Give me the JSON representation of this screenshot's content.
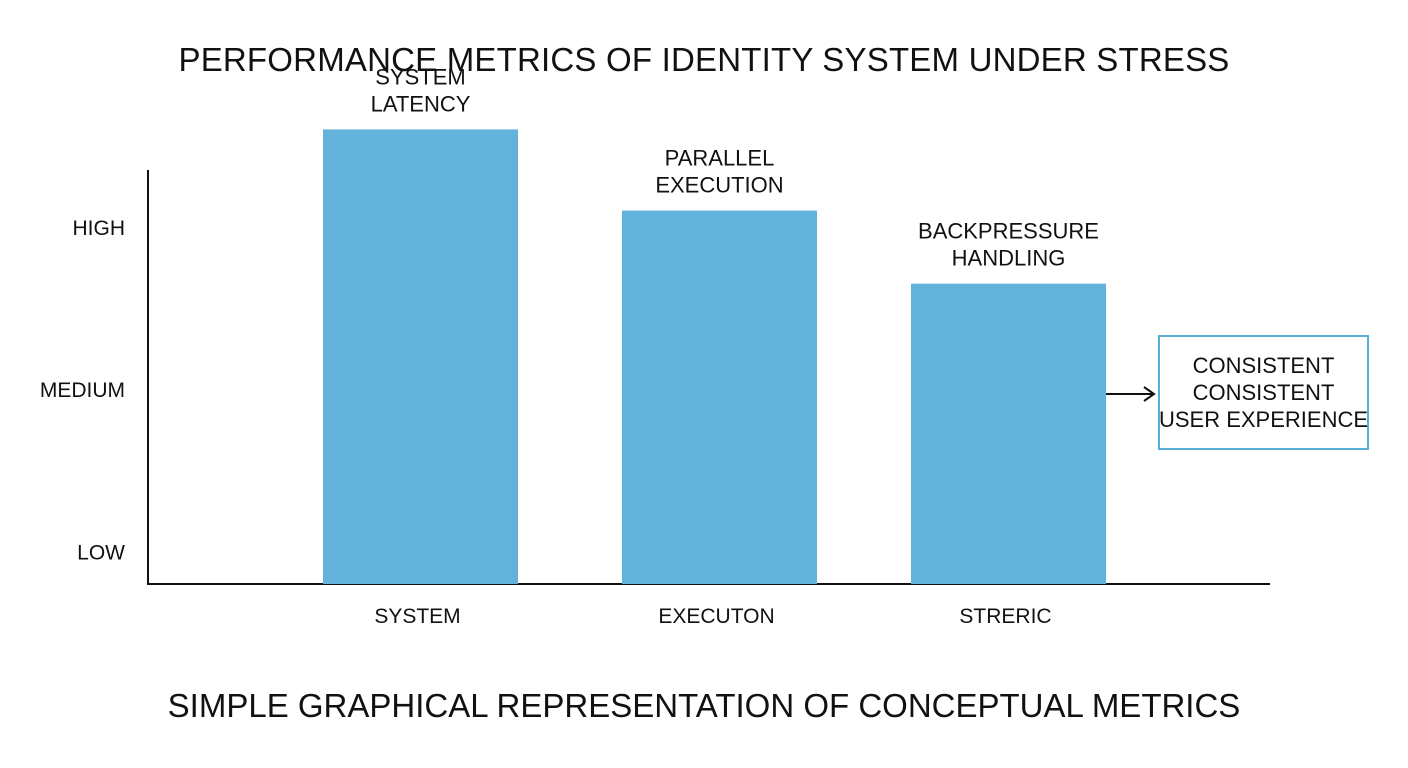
{
  "chart_data": {
    "type": "bar",
    "title": "PERFORMANCE METRICS OF IDENTITY SYSTEM UNDER STRESS",
    "subtitle": "SIMPLE GRAPHICAL REPRESENTATION OF CONCEPTUAL METRICS",
    "categories": [
      "SYSTEM",
      "EXECUTON",
      "STRERIC"
    ],
    "bar_labels": [
      [
        "SYSTEM",
        "LATENCY"
      ],
      [
        "PARALLEL",
        "EXECUTION"
      ],
      [
        "BACKPRESSURE",
        "HANDLING"
      ]
    ],
    "values": [
      2.8,
      2.3,
      1.85
    ],
    "y_ticks": [
      {
        "value": 0.2,
        "label": "LOW"
      },
      {
        "value": 1.2,
        "label": "MEDIUM"
      },
      {
        "value": 2.2,
        "label": "HIGH"
      }
    ],
    "ylim": [
      0,
      2.55
    ],
    "grid": false,
    "bar_color": "#63b2dc",
    "annotation": {
      "lines": [
        "CONSISTENT",
        "CONSISTENT",
        "USER EXPERIENCE"
      ],
      "border_color": "#5aaed8"
    }
  }
}
